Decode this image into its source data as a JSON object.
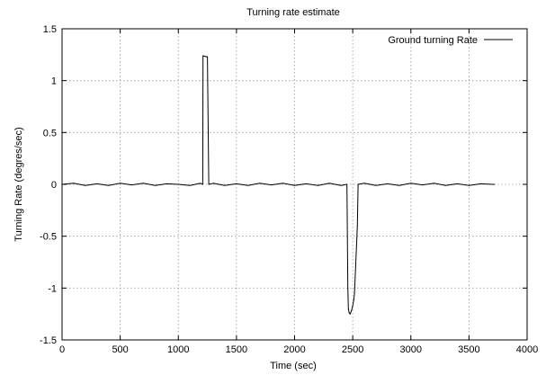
{
  "chart_data": {
    "type": "line",
    "title": "Turning rate estimate",
    "xlabel": "Time (sec)",
    "ylabel": "Turning Rate (degres/sec)",
    "xlim": [
      0,
      4000
    ],
    "ylim": [
      -1.5,
      1.5
    ],
    "xticks": [
      0,
      500,
      1000,
      1500,
      2000,
      2500,
      3000,
      3500,
      4000
    ],
    "yticks": [
      1.5,
      1,
      0.5,
      0,
      -0.5,
      -1,
      -1.5
    ],
    "xtick_labels": [
      "0",
      "500",
      "1000",
      "1500",
      "2000",
      "2500",
      "3000",
      "3500",
      "4000"
    ],
    "ytick_labels": [
      "1.5",
      "1",
      "0.5",
      "0",
      "-0.5",
      "-1",
      "-1.5"
    ],
    "grid": true,
    "legend_position": "top-right",
    "series": [
      {
        "name": "Ground turning Rate",
        "color": "#000000",
        "x": [
          0,
          100,
          200,
          300,
          400,
          500,
          600,
          700,
          800,
          900,
          1000,
          1100,
          1190,
          1210,
          1212,
          1240,
          1250,
          1262,
          1300,
          1400,
          1500,
          1600,
          1700,
          1800,
          1900,
          2000,
          2100,
          2200,
          2300,
          2400,
          2450,
          2458,
          2463,
          2470,
          2478,
          2488,
          2498,
          2508,
          2515,
          2540,
          2546,
          2600,
          2700,
          2800,
          2900,
          3000,
          3100,
          3200,
          3300,
          3400,
          3500,
          3600,
          3700,
          3720
        ],
        "y": [
          0,
          0.01,
          -0.01,
          0.005,
          -0.01,
          0.01,
          -0.005,
          0.01,
          -0.01,
          0.005,
          0,
          -0.01,
          0.01,
          0.0,
          1.24,
          1.23,
          1.23,
          0.0,
          0.01,
          -0.01,
          0.005,
          -0.01,
          0.01,
          -0.005,
          0.01,
          -0.01,
          0.005,
          -0.01,
          0.01,
          -0.01,
          0.0,
          -1.0,
          -1.2,
          -1.24,
          -1.25,
          -1.22,
          -1.18,
          -1.12,
          -1.05,
          -0.4,
          0.0,
          0.01,
          -0.01,
          0.005,
          -0.01,
          0.01,
          -0.005,
          0.01,
          -0.01,
          0.005,
          -0.01,
          0.005,
          0.0,
          0.0
        ]
      }
    ]
  }
}
